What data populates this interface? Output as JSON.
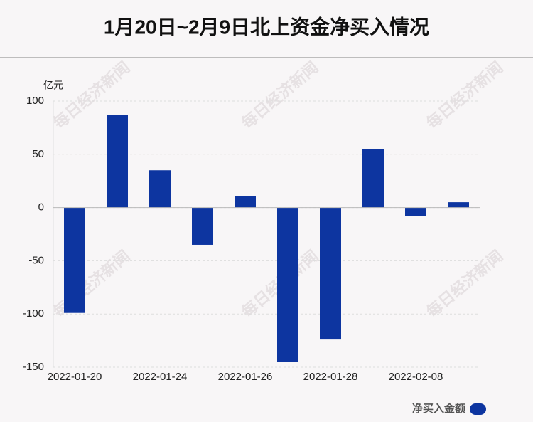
{
  "chart_data": {
    "type": "bar",
    "title": "1月20日~2月9日北上资金净买入情况",
    "y_label": "亿元",
    "categories": [
      "2022-01-20",
      null,
      "2022-01-24",
      null,
      "2022-01-26",
      null,
      "2022-01-28",
      null,
      "2022-02-08",
      null
    ],
    "series": [
      {
        "name": "净买入金额",
        "color": "#0d35a0",
        "values": [
          -99,
          87,
          35,
          -35,
          11,
          -145,
          -124,
          55,
          -8,
          5
        ]
      }
    ],
    "ylim": [
      -150,
      100
    ],
    "yticks": [
      -150,
      -100,
      -50,
      0,
      50,
      100
    ],
    "grid": true,
    "legend": "bottom-right"
  },
  "watermark": "每日经济新闻"
}
